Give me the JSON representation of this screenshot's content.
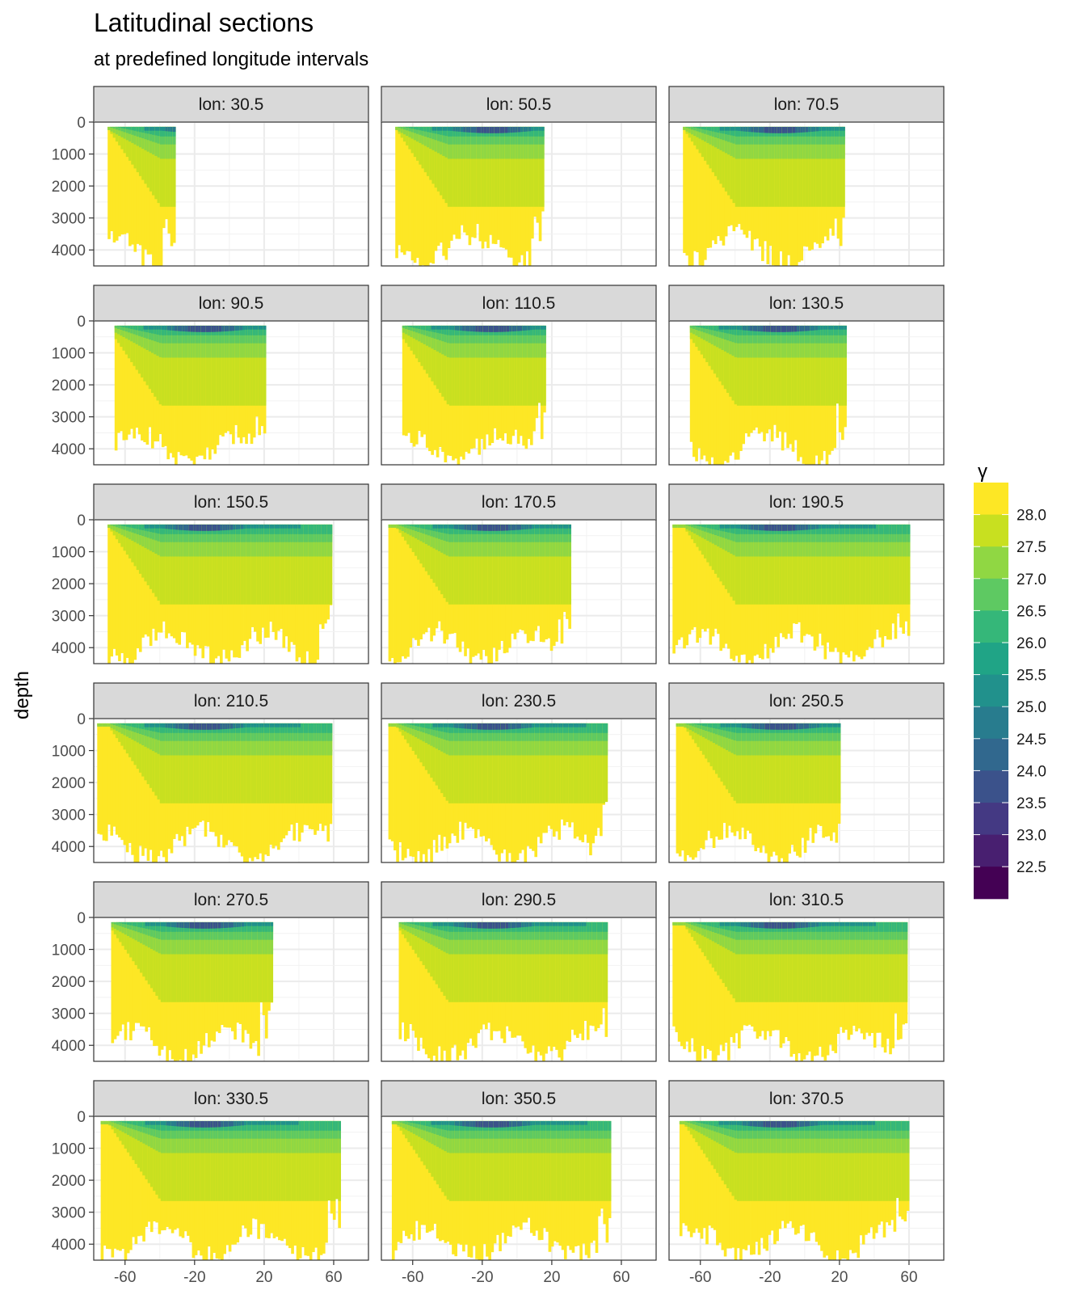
{
  "title": "Latitudinal sections",
  "subtitle": "at predefined longitude intervals",
  "chart_data": {
    "type": "heatmap",
    "title": "Latitudinal sections",
    "subtitle": "at predefined longitude intervals",
    "ylabel": "depth",
    "xlabel": "",
    "x_ticks": [
      -60,
      -20,
      20,
      60
    ],
    "y_ticks": [
      0,
      1000,
      2000,
      3000,
      4000
    ],
    "xlim": [
      -78,
      80
    ],
    "ylim": [
      0,
      4500
    ],
    "y_reversed": true,
    "grid": true,
    "legend": {
      "title": "γ",
      "placement": "right",
      "breaks": [
        28.0,
        27.5,
        27.0,
        26.5,
        26.0,
        25.5,
        25.0,
        24.5,
        24.0,
        23.5,
        23.0,
        22.5
      ],
      "colors": [
        "#fde725",
        "#c8e020",
        "#90d743",
        "#5ec962",
        "#35b779",
        "#20a486",
        "#21918c",
        "#287c8e",
        "#31688e",
        "#3b528b",
        "#443983",
        "#481f70",
        "#440154"
      ]
    },
    "panels": [
      {
        "label": "lon: 30.5",
        "lat_range": [
          -70,
          -32
        ]
      },
      {
        "label": "lon: 50.5",
        "lat_range": [
          -70,
          15
        ]
      },
      {
        "label": "lon: 70.5",
        "lat_range": [
          -70,
          22
        ]
      },
      {
        "label": "lon: 90.5",
        "lat_range": [
          -66,
          20
        ]
      },
      {
        "label": "lon: 110.5",
        "lat_range": [
          -66,
          16
        ]
      },
      {
        "label": "lon: 130.5",
        "lat_range": [
          -66,
          24
        ]
      },
      {
        "label": "lon: 150.5",
        "lat_range": [
          -70,
          58
        ]
      },
      {
        "label": "lon: 170.5",
        "lat_range": [
          -74,
          30
        ]
      },
      {
        "label": "lon: 190.5",
        "lat_range": [
          -76,
          60
        ]
      },
      {
        "label": "lon: 210.5",
        "lat_range": [
          -76,
          58
        ]
      },
      {
        "label": "lon: 230.5",
        "lat_range": [
          -74,
          52
        ]
      },
      {
        "label": "lon: 250.5",
        "lat_range": [
          -74,
          20
        ]
      },
      {
        "label": "lon: 270.5",
        "lat_range": [
          -68,
          24
        ]
      },
      {
        "label": "lon: 290.5",
        "lat_range": [
          -68,
          52
        ]
      },
      {
        "label": "lon: 310.5",
        "lat_range": [
          -76,
          58
        ]
      },
      {
        "label": "lon: 330.5",
        "lat_range": [
          -74,
          64
        ]
      },
      {
        "label": "lon: 350.5",
        "lat_range": [
          -72,
          54
        ]
      },
      {
        "label": "lon: 370.5",
        "lat_range": [
          -72,
          60
        ]
      }
    ]
  }
}
